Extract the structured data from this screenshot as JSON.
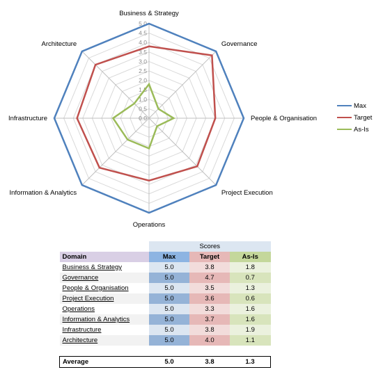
{
  "chart_data": {
    "type": "radar",
    "axes": [
      "Business & Strategy",
      "Governance",
      "People & Organisation",
      "Project Execution",
      "Operations",
      "Information & Analytics",
      "Infrastructure",
      "Architecture"
    ],
    "range": [
      0,
      5
    ],
    "ticks": [
      "0.0",
      "0.5",
      "1.0",
      "1.5",
      "2.0",
      "2.5",
      "3.0",
      "3.5",
      "4.0",
      "4.5",
      "5.0"
    ],
    "series": [
      {
        "name": "Max",
        "color": "#4f81bd",
        "values": [
          5.0,
          5.0,
          5.0,
          5.0,
          5.0,
          5.0,
          5.0,
          5.0
        ]
      },
      {
        "name": "Target",
        "color": "#c0504d",
        "values": [
          3.8,
          4.7,
          3.5,
          3.6,
          3.3,
          3.7,
          3.8,
          4.0
        ]
      },
      {
        "name": "As-Is",
        "color": "#9bbb59",
        "values": [
          1.8,
          0.7,
          1.3,
          0.6,
          1.6,
          1.6,
          1.9,
          1.1
        ]
      }
    ],
    "legend": "right",
    "grid": true
  },
  "table": {
    "group_header": "Scores",
    "columns": [
      "Domain",
      "Max",
      "Target",
      "As-Is"
    ],
    "rows": [
      {
        "domain": "Business & Strategy",
        "max": "5.0",
        "target": "3.8",
        "asis": "1.8"
      },
      {
        "domain": "Governance",
        "max": "5.0",
        "target": "4.7",
        "asis": "0.7"
      },
      {
        "domain": "People & Organisation",
        "max": "5.0",
        "target": "3.5",
        "asis": "1.3"
      },
      {
        "domain": "Project Execution",
        "max": "5.0",
        "target": "3.6",
        "asis": "0.6"
      },
      {
        "domain": "Operations",
        "max": "5.0",
        "target": "3.3",
        "asis": "1.6"
      },
      {
        "domain": "Information & Analytics",
        "max": "5.0",
        "target": "3.7",
        "asis": "1.6"
      },
      {
        "domain": "Infrastructure",
        "max": "5.0",
        "target": "3.8",
        "asis": "1.9"
      },
      {
        "domain": "Architecture",
        "max": "5.0",
        "target": "4.0",
        "asis": "1.1"
      }
    ],
    "average": {
      "label": "Average",
      "max": "5.0",
      "target": "3.8",
      "asis": "1.3"
    }
  }
}
